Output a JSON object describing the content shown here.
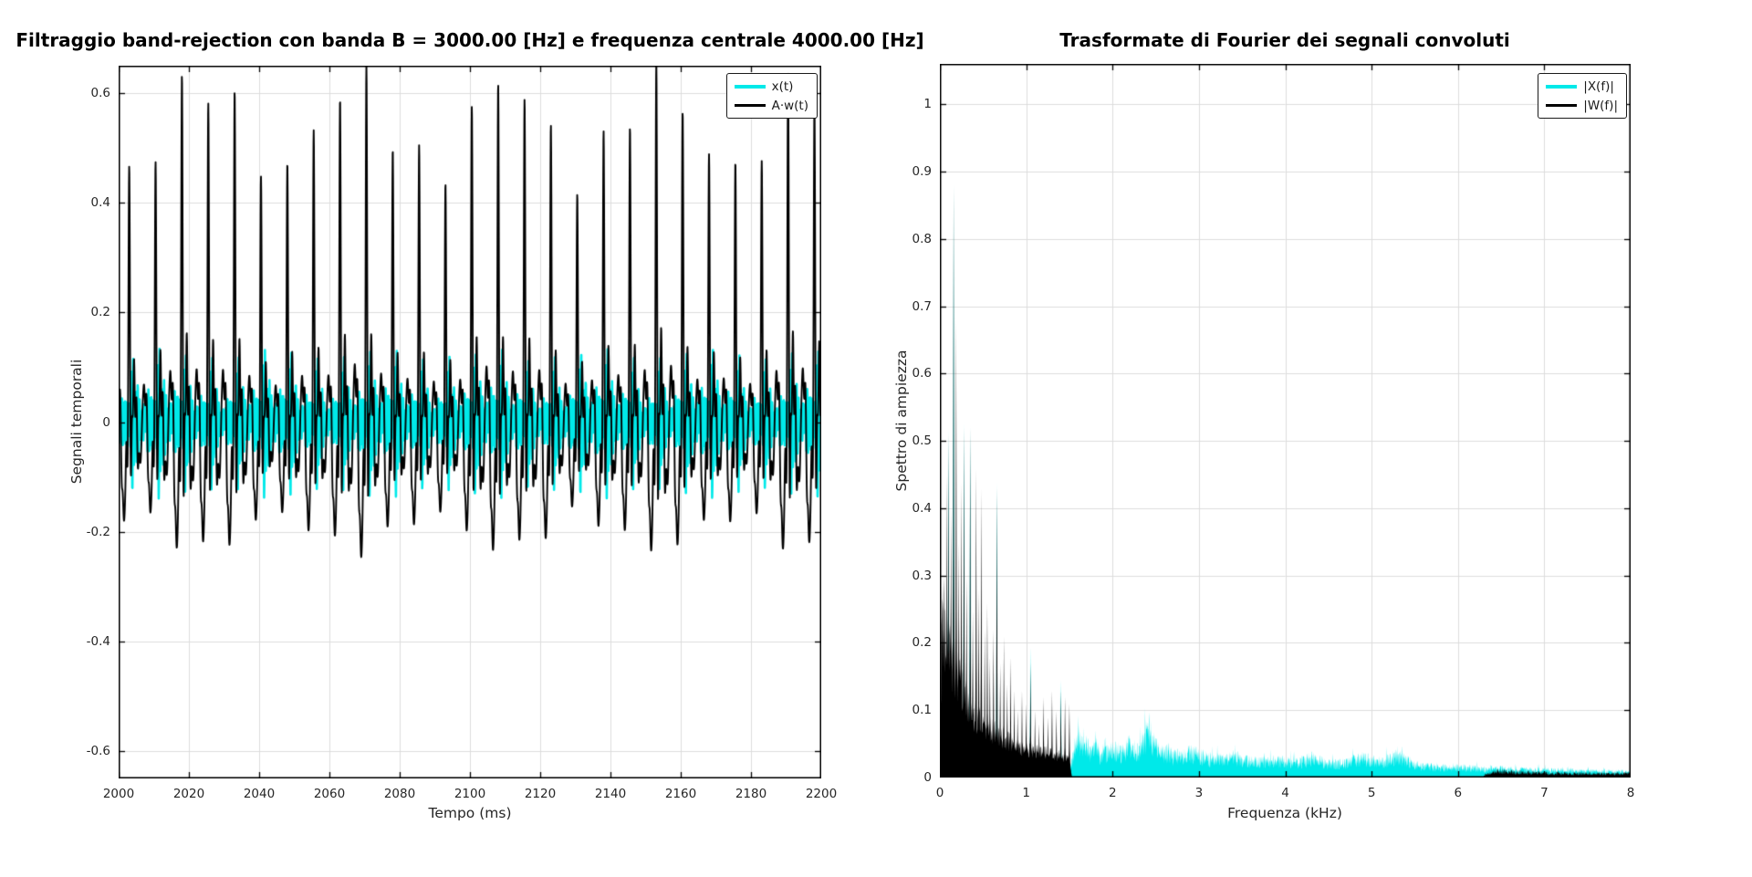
{
  "figure": {
    "background": "#ffffff"
  },
  "chart_data": [
    {
      "id": "time-domain",
      "type": "line",
      "title": "Filtraggio band-rejection con banda B = 3000.00 [Hz] e frequenza centrale 4000.00 [Hz]",
      "xlabel": "Tempo (ms)",
      "ylabel": "Segnali temporali",
      "xlim": [
        2000,
        2200
      ],
      "ylim": [
        -0.65,
        0.65
      ],
      "xticks": [
        "2000",
        "2020",
        "2040",
        "2060",
        "2080",
        "2100",
        "2120",
        "2140",
        "2160",
        "2180",
        "2200"
      ],
      "yticks": [
        "-0.6",
        "-0.4",
        "-0.2",
        "0",
        "0.2",
        "0.4",
        "0.6"
      ],
      "grid": true,
      "grid_color": "#dcdcdc",
      "axis_color": "#000000",
      "legend": {
        "position": "top-right",
        "entries": [
          {
            "label": "x(t)",
            "color": "#00E9E9"
          },
          {
            "label": "A·w(t)",
            "color": "#000000"
          }
        ]
      },
      "series": [
        {
          "name": "x(t)",
          "color": "#00E9E9",
          "line_width": 2.6,
          "seed": 13,
          "fundamental_hz": 133.3,
          "amplitude_floor": 0.052,
          "amplitude_peak": 0.15,
          "noise_harmonic_range": [
            12,
            19
          ]
        },
        {
          "name": "A·w(t)",
          "color": "#000000",
          "line_width": 1.9,
          "seed": 7,
          "fundamental_hz": 133.3,
          "base_amplitude": 0.54,
          "clip_level": 0.65,
          "harmonics_rel": [
            [
              1,
              0.55
            ],
            [
              2,
              1.0
            ],
            [
              3,
              0.75
            ],
            [
              4,
              0.55
            ],
            [
              5,
              0.5
            ],
            [
              6,
              0.55
            ],
            [
              7,
              0.45
            ],
            [
              8,
              0.45
            ],
            [
              9,
              0.32
            ],
            [
              10,
              0.3
            ],
            [
              11,
              0.28
            ],
            [
              12,
              0.14
            ]
          ],
          "envelope_periods_ms": [
            43,
            17.3
          ],
          "envelope_depths": [
            0.16,
            0.08
          ]
        }
      ]
    },
    {
      "id": "spectrum",
      "type": "area",
      "title": "Trasformate di Fourier dei segnali convoluti",
      "xlabel": "Frequenza (kHz)",
      "ylabel": "Spettro di ampiezza",
      "xlim": [
        0,
        8
      ],
      "ylim": [
        0,
        1.06
      ],
      "xticks": [
        "0",
        "1",
        "2",
        "3",
        "4",
        "5",
        "6",
        "7",
        "8"
      ],
      "yticks": [
        "0",
        "0.1",
        "0.2",
        "0.3",
        "0.4",
        "0.5",
        "0.6",
        "0.7",
        "0.8",
        "0.9",
        "1"
      ],
      "grid": true,
      "grid_color": "#dcdcdc",
      "axis_color": "#000000",
      "legend": {
        "position": "top-right",
        "entries": [
          {
            "label": "|X(f)|",
            "color": "#00E9E9"
          },
          {
            "label": "|W(f)|",
            "color": "#000000"
          }
        ]
      },
      "series": [
        {
          "name": "|X(f)|",
          "color": "#00E9E9",
          "fill": true,
          "seed": 21,
          "band_start_khz": 1.5,
          "envelope_points": [
            [
              1.52,
              0.03
            ],
            [
              1.56,
              0.06
            ],
            [
              1.6,
              0.095
            ],
            [
              1.65,
              0.055
            ],
            [
              1.7,
              0.065
            ],
            [
              1.75,
              0.05
            ],
            [
              1.8,
              0.075
            ],
            [
              1.85,
              0.05
            ],
            [
              1.9,
              0.055
            ],
            [
              2.0,
              0.06
            ],
            [
              2.1,
              0.05
            ],
            [
              2.2,
              0.068
            ],
            [
              2.3,
              0.05
            ],
            [
              2.42,
              0.105
            ],
            [
              2.5,
              0.06
            ],
            [
              2.6,
              0.05
            ],
            [
              2.7,
              0.045
            ],
            [
              2.8,
              0.042
            ],
            [
              2.9,
              0.05
            ],
            [
              3.0,
              0.045
            ],
            [
              3.1,
              0.04
            ],
            [
              3.25,
              0.038
            ],
            [
              3.4,
              0.042
            ],
            [
              3.55,
              0.035
            ],
            [
              3.7,
              0.032
            ],
            [
              3.85,
              0.035
            ],
            [
              4.0,
              0.032
            ],
            [
              4.15,
              0.03
            ],
            [
              4.3,
              0.04
            ],
            [
              4.5,
              0.028
            ],
            [
              4.7,
              0.03
            ],
            [
              4.9,
              0.042
            ],
            [
              5.1,
              0.028
            ],
            [
              5.3,
              0.045
            ],
            [
              5.5,
              0.025
            ],
            [
              5.7,
              0.022
            ],
            [
              5.9,
              0.02
            ],
            [
              6.1,
              0.02
            ],
            [
              6.3,
              0.018
            ],
            [
              6.5,
              0.018
            ],
            [
              6.8,
              0.016
            ],
            [
              7.1,
              0.015
            ],
            [
              7.4,
              0.014
            ],
            [
              7.7,
              0.013
            ],
            [
              8.0,
              0.012
            ]
          ],
          "tips": [
            [
              0.1,
              0.52
            ],
            [
              0.16,
              0.885
            ],
            [
              0.28,
              0.53
            ],
            [
              0.35,
              0.525
            ],
            [
              0.66,
              0.44
            ],
            [
              1.05,
              0.195
            ],
            [
              1.4,
              0.145
            ]
          ]
        },
        {
          "name": "|W(f)|",
          "color": "#000000",
          "fill": true,
          "seed": 5,
          "band_limit_khz": 1.53,
          "peaks": [
            [
              0.05,
              0.3
            ],
            [
              0.08,
              0.45
            ],
            [
              0.1,
              0.51
            ],
            [
              0.13,
              0.4
            ],
            [
              0.16,
              0.88
            ],
            [
              0.19,
              0.68
            ],
            [
              0.22,
              0.35
            ],
            [
              0.25,
              0.44
            ],
            [
              0.28,
              0.52
            ],
            [
              0.31,
              0.3
            ],
            [
              0.35,
              0.52
            ],
            [
              0.38,
              0.25
            ],
            [
              0.42,
              0.46
            ],
            [
              0.45,
              0.28
            ],
            [
              0.48,
              0.43
            ],
            [
              0.52,
              0.22
            ],
            [
              0.55,
              0.26
            ],
            [
              0.58,
              0.18
            ],
            [
              0.62,
              0.22
            ],
            [
              0.66,
              0.43
            ],
            [
              0.7,
              0.17
            ],
            [
              0.74,
              0.21
            ],
            [
              0.78,
              0.14
            ],
            [
              0.82,
              0.18
            ],
            [
              0.86,
              0.13
            ],
            [
              0.9,
              0.1
            ],
            [
              0.95,
              0.13
            ],
            [
              1.0,
              0.11
            ],
            [
              1.05,
              0.17
            ],
            [
              1.1,
              0.1
            ],
            [
              1.15,
              0.08
            ],
            [
              1.2,
              0.12
            ],
            [
              1.25,
              0.09
            ],
            [
              1.3,
              0.13
            ],
            [
              1.35,
              0.1
            ],
            [
              1.4,
              0.13
            ],
            [
              1.45,
              0.12
            ],
            [
              1.5,
              0.11
            ]
          ],
          "floor_points": [
            [
              0,
              0.02
            ],
            [
              0.02,
              0.3
            ],
            [
              0.06,
              0.28
            ],
            [
              0.1,
              0.25
            ],
            [
              0.15,
              0.22
            ],
            [
              0.2,
              0.2
            ],
            [
              0.3,
              0.15
            ],
            [
              0.4,
              0.12
            ],
            [
              0.5,
              0.1
            ],
            [
              0.6,
              0.09
            ],
            [
              0.7,
              0.08
            ],
            [
              0.8,
              0.07
            ],
            [
              0.9,
              0.06
            ],
            [
              1.0,
              0.055
            ],
            [
              1.1,
              0.05
            ],
            [
              1.2,
              0.05
            ],
            [
              1.3,
              0.045
            ],
            [
              1.4,
              0.04
            ],
            [
              1.5,
              0.035
            ],
            [
              1.53,
              0.0
            ]
          ],
          "high_band_points": [
            [
              6.3,
              0.006
            ],
            [
              6.45,
              0.014
            ],
            [
              6.6,
              0.012
            ],
            [
              6.9,
              0.01
            ],
            [
              7.2,
              0.009
            ],
            [
              7.5,
              0.009
            ],
            [
              7.8,
              0.008
            ],
            [
              8.0,
              0.009
            ]
          ]
        }
      ]
    }
  ]
}
